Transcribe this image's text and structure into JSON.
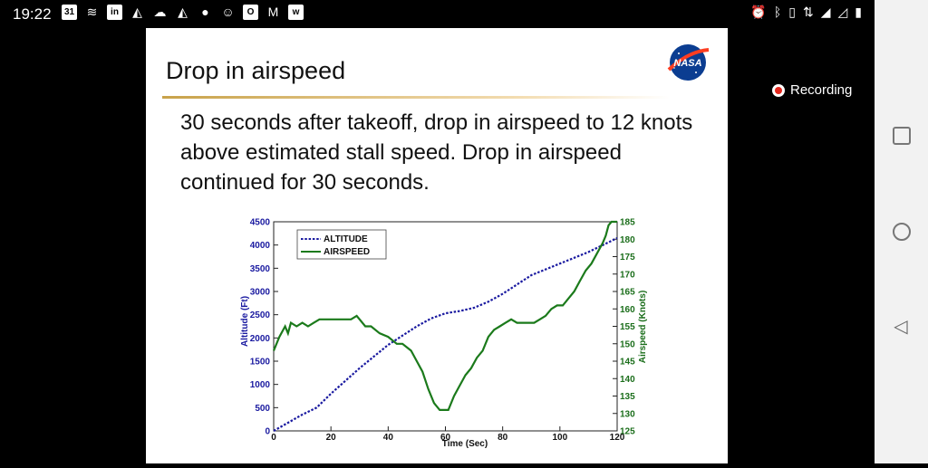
{
  "status_bar": {
    "time": "19:22",
    "left_icons": [
      "calendar-icon",
      "layers-icon",
      "linkedin-icon",
      "chart-app-icon",
      "cloud-icon",
      "chart-app-icon",
      "chat-icon",
      "smiley-icon",
      "outlook-icon",
      "gmail-icon",
      "waze-icon"
    ],
    "calendar_day": "31",
    "right_icons": [
      "alarm-icon",
      "bluetooth-icon",
      "vibrate-icon",
      "data-arrows-icon",
      "signal-icon",
      "no-signal-icon",
      "battery-icon"
    ]
  },
  "recording": {
    "label": "Recording"
  },
  "slide": {
    "title": "Drop in airspeed",
    "logo_text": "NASA",
    "body": "30 seconds after takeoff, drop in airspeed to 12 knots above estimated stall speed. Drop in airspeed continued for 30 seconds."
  },
  "colors": {
    "altitude": "#1a1aa0",
    "airspeed": "#1b7a1b",
    "accent_rule": "#c8a24a",
    "recording": "#e3261c"
  },
  "chart_data": {
    "type": "line",
    "title": "",
    "xlabel": "Time (Sec)",
    "ylabel": "Altitude (Ft)",
    "y2label": "Airspeed (Knots)",
    "xlim": [
      0,
      120
    ],
    "ylim": [
      0,
      4500
    ],
    "y2lim": [
      125,
      185
    ],
    "xticks": [
      0,
      20,
      40,
      60,
      80,
      100,
      120
    ],
    "yticks": [
      0,
      500,
      1000,
      1500,
      2000,
      2500,
      3000,
      3500,
      4000,
      4500
    ],
    "y2ticks": [
      125,
      130,
      135,
      140,
      145,
      150,
      155,
      160,
      165,
      170,
      175,
      180,
      185
    ],
    "legend_position": "top-left",
    "grid": false,
    "series": [
      {
        "name": "ALTITUDE",
        "axis": "left",
        "style": "dotted",
        "x": [
          0,
          10,
          15,
          20,
          30,
          40,
          50,
          55,
          60,
          65,
          70,
          75,
          80,
          85,
          90,
          100,
          110,
          115,
          120
        ],
        "y": [
          0,
          350,
          500,
          800,
          1350,
          1850,
          2250,
          2420,
          2530,
          2580,
          2650,
          2780,
          2950,
          3150,
          3350,
          3600,
          3850,
          4000,
          4150
        ]
      },
      {
        "name": "AIRSPEED",
        "axis": "right",
        "style": "solid",
        "x": [
          0,
          2,
          4,
          5,
          6,
          8,
          10,
          12,
          14,
          16,
          18,
          20,
          24,
          27,
          29,
          32,
          34,
          37,
          40,
          43,
          45,
          48,
          50,
          52,
          54,
          56,
          58,
          60,
          61,
          63,
          65,
          67,
          69,
          71,
          73,
          75,
          77,
          79,
          81,
          83,
          85,
          87,
          89,
          91,
          93,
          95,
          97,
          99,
          101,
          103,
          105,
          107,
          109,
          111,
          113,
          115,
          116,
          117,
          118,
          119,
          120
        ],
        "y": [
          148,
          152,
          155,
          153,
          156,
          155,
          156,
          155,
          156,
          157,
          157,
          157,
          157,
          157,
          158,
          155,
          155,
          153,
          152,
          150,
          150,
          148,
          145,
          142,
          137,
          133,
          131,
          131,
          131,
          135,
          138,
          141,
          143,
          146,
          148,
          152,
          154,
          155,
          156,
          157,
          156,
          156,
          156,
          156,
          157,
          158,
          160,
          161,
          161,
          163,
          165,
          168,
          171,
          173,
          176,
          179,
          181,
          184,
          185,
          185,
          185
        ]
      }
    ]
  }
}
